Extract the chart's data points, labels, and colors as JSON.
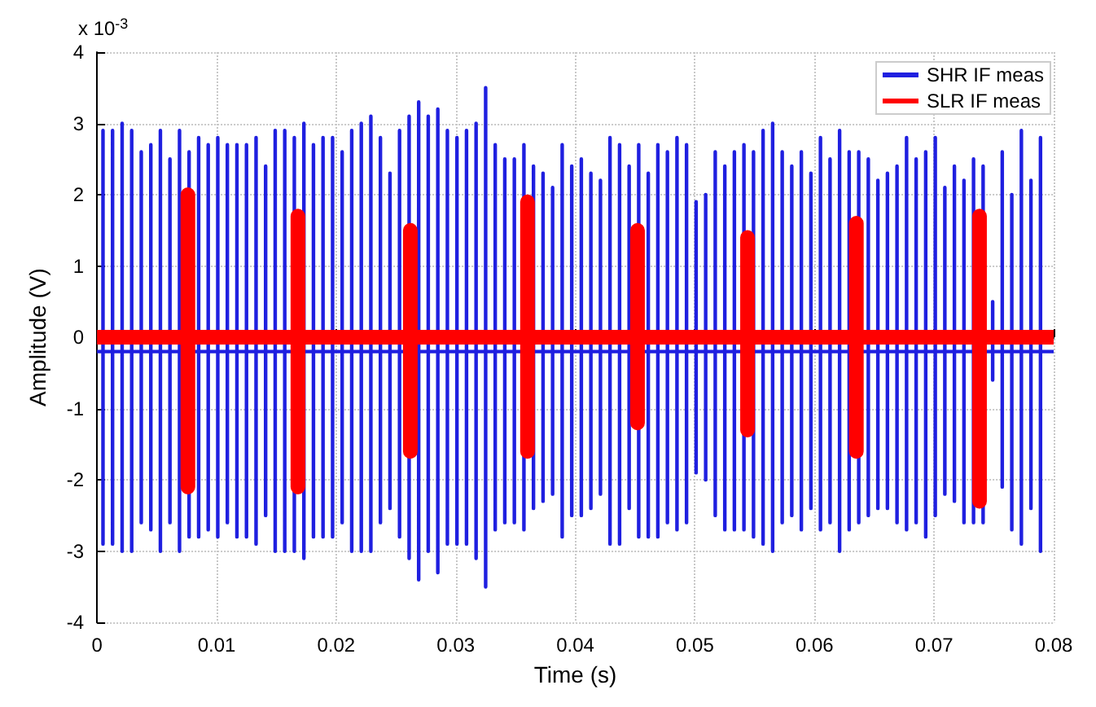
{
  "chart_data": {
    "type": "step",
    "xlabel": "Time (s)",
    "ylabel": "Amplitude (V)",
    "annotations": [
      "x 10$^{-3}$"
    ],
    "xlim": [
      0,
      0.08
    ],
    "xticks": [
      0,
      0.01,
      0.02,
      0.03,
      0.04,
      0.05,
      0.06,
      0.07,
      0.08
    ],
    "ylim": [
      -4,
      4
    ],
    "yticks": [
      -4,
      -3,
      -2,
      -1,
      0,
      1,
      2,
      3,
      4
    ],
    "grid": true,
    "legend": "top right",
    "line_style": "solid",
    "marker": "none",
    "series": [
      {
        "name": "SHR IF meas",
        "color": "#1f1fe0",
        "x": [
          0,
          0.0005,
          0.0005,
          0.0005,
          0.0013,
          0.0013,
          0.0013,
          0.0021,
          0.0021,
          0.0021,
          0.0029,
          0.0029,
          0.0029,
          0.0037,
          0.0037,
          0.0037,
          0.0045,
          0.0045,
          0.0045,
          0.0053,
          0.0053,
          0.0053,
          0.0061,
          0.0061,
          0.0061,
          0.0069,
          0.0069,
          0.0069,
          0.0077,
          0.0077,
          0.0077,
          0.0085,
          0.0085,
          0.0085,
          0.0093,
          0.0093,
          0.0093,
          0.0101,
          0.0101,
          0.0101,
          0.0109,
          0.0109,
          0.0109,
          0.0117,
          0.0117,
          0.0117,
          0.0125,
          0.0125,
          0.0125,
          0.0133,
          0.0133,
          0.0133,
          0.0141,
          0.0141,
          0.0141,
          0.0149,
          0.0149,
          0.0149,
          0.0157,
          0.0157,
          0.0157,
          0.0165,
          0.0165,
          0.0165,
          0.0173,
          0.0173,
          0.0173,
          0.0181,
          0.0181,
          0.0181,
          0.0189,
          0.0189,
          0.0189,
          0.0197,
          0.0197,
          0.0197,
          0.0205,
          0.0205,
          0.0205,
          0.0213,
          0.0213,
          0.0213,
          0.0221,
          0.0221,
          0.0221,
          0.0229,
          0.0229,
          0.0229,
          0.0237,
          0.0237,
          0.0237,
          0.0245,
          0.0245,
          0.0245,
          0.0253,
          0.0253,
          0.0253,
          0.0261,
          0.0261,
          0.0261,
          0.0269,
          0.0269,
          0.0269,
          0.0277,
          0.0277,
          0.0277,
          0.0285,
          0.0285,
          0.0285,
          0.0293,
          0.0293,
          0.0293,
          0.0301,
          0.0301,
          0.0301,
          0.0309,
          0.0309,
          0.0309,
          0.0317,
          0.0317,
          0.0317,
          0.0325,
          0.0325,
          0.0325,
          0.0333,
          0.0333,
          0.0333,
          0.0341,
          0.0341,
          0.0341,
          0.0349,
          0.0349,
          0.0349,
          0.0357,
          0.0357,
          0.0357,
          0.0365,
          0.0365,
          0.0365,
          0.0373,
          0.0373,
          0.0373,
          0.0381,
          0.0381,
          0.0381,
          0.0389,
          0.0389,
          0.0389,
          0.0397,
          0.0397,
          0.0397,
          0.0405,
          0.0405,
          0.0405,
          0.0413,
          0.0413,
          0.0413,
          0.0421,
          0.0421,
          0.0421,
          0.0429,
          0.0429,
          0.0429,
          0.0437,
          0.0437,
          0.0437,
          0.0445,
          0.0445,
          0.0445,
          0.0453,
          0.0453,
          0.0453,
          0.0461,
          0.0461,
          0.0461,
          0.0469,
          0.0469,
          0.0469,
          0.0477,
          0.0477,
          0.0477,
          0.0485,
          0.0485,
          0.0485,
          0.0493,
          0.0493,
          0.0493,
          0.0501,
          0.0501,
          0.0501,
          0.0509,
          0.0509,
          0.0509,
          0.0517,
          0.0517,
          0.0517,
          0.0525,
          0.0525,
          0.0525,
          0.0533,
          0.0533,
          0.0533,
          0.0541,
          0.0541,
          0.0541,
          0.0549,
          0.0549,
          0.0549,
          0.0557,
          0.0557,
          0.0557,
          0.0565,
          0.0565,
          0.0565,
          0.0573,
          0.0573,
          0.0573,
          0.0581,
          0.0581,
          0.0581,
          0.0589,
          0.0589,
          0.0589,
          0.0597,
          0.0597,
          0.0597,
          0.0605,
          0.0605,
          0.0605,
          0.0613,
          0.0613,
          0.0613,
          0.0621,
          0.0621,
          0.0621,
          0.0629,
          0.0629,
          0.0629,
          0.0637,
          0.0637,
          0.0637,
          0.0645,
          0.0645,
          0.0645,
          0.0653,
          0.0653,
          0.0653,
          0.0661,
          0.0661,
          0.0661,
          0.0669,
          0.0669,
          0.0669,
          0.0677,
          0.0677,
          0.0677,
          0.0685,
          0.0685,
          0.0685,
          0.0693,
          0.0693,
          0.0693,
          0.0701,
          0.0701,
          0.0701,
          0.0709,
          0.0709,
          0.0709,
          0.0717,
          0.0717,
          0.0717,
          0.0725,
          0.0725,
          0.0725,
          0.0733,
          0.0733,
          0.0733,
          0.0741,
          0.0741,
          0.0741,
          0.0749,
          0.0749,
          0.0749,
          0.0757,
          0.0757,
          0.0757,
          0.0765,
          0.0765,
          0.0765,
          0.0773,
          0.0773,
          0.0773,
          0.0781,
          0.0781,
          0.0781,
          0.0789,
          0.0789,
          0.0789,
          0.08
        ],
        "values": [
          -0.2,
          2.9,
          -2.9,
          -0.2,
          2.9,
          -2.9,
          -0.2,
          3.0,
          -3.0,
          -0.2,
          2.9,
          -3.0,
          -0.2,
          2.6,
          -2.6,
          -0.2,
          2.7,
          -2.7,
          -0.2,
          2.9,
          -3.0,
          -0.2,
          2.5,
          -2.6,
          -0.2,
          2.9,
          -3.0,
          -0.2,
          2.6,
          -2.8,
          -0.2,
          2.8,
          -2.8,
          -0.2,
          2.7,
          -2.7,
          -0.2,
          2.8,
          -2.8,
          -0.2,
          2.7,
          -2.6,
          -0.2,
          2.7,
          -2.8,
          -0.2,
          2.7,
          -2.8,
          -0.2,
          2.8,
          -2.9,
          -0.2,
          2.4,
          -2.5,
          -0.2,
          2.9,
          -3.0,
          -0.2,
          2.9,
          -3.0,
          -0.2,
          2.8,
          -3.0,
          -0.2,
          3.0,
          -3.1,
          -0.2,
          2.7,
          -2.8,
          -0.2,
          2.8,
          -2.8,
          -0.2,
          2.8,
          -2.8,
          -0.2,
          2.6,
          -2.6,
          -0.2,
          2.9,
          -3.0,
          -0.2,
          3.0,
          -3.0,
          -0.2,
          3.1,
          -3.0,
          -0.2,
          2.8,
          -2.6,
          -0.2,
          2.3,
          -2.4,
          -0.2,
          2.9,
          -2.8,
          -0.2,
          3.1,
          -3.1,
          -0.2,
          3.3,
          -3.4,
          -0.2,
          3.1,
          -3.0,
          -0.2,
          3.2,
          -3.3,
          -0.2,
          2.9,
          -2.9,
          -0.2,
          2.8,
          -2.9,
          -0.2,
          2.9,
          -2.9,
          -0.2,
          3.0,
          -3.1,
          -0.2,
          3.5,
          -3.5,
          -0.2,
          2.7,
          -2.7,
          -0.2,
          2.5,
          -2.6,
          -0.2,
          2.5,
          -2.6,
          -0.2,
          2.7,
          -2.7,
          -0.2,
          2.4,
          -2.4,
          -0.2,
          2.3,
          -2.3,
          -0.2,
          2.1,
          -2.2,
          -0.2,
          2.7,
          -2.8,
          -0.2,
          2.4,
          -2.5,
          -0.2,
          2.5,
          -2.5,
          -0.2,
          2.3,
          -2.4,
          -0.2,
          2.2,
          -2.2,
          -0.2,
          2.8,
          -2.9,
          -0.2,
          2.7,
          -2.9,
          -0.2,
          2.4,
          -2.4,
          -0.2,
          2.7,
          -2.8,
          -0.2,
          2.3,
          -2.8,
          -0.2,
          2.7,
          -2.8,
          -0.2,
          2.6,
          -2.6,
          -0.2,
          2.8,
          -2.7,
          -0.2,
          2.7,
          -2.6,
          -0.2,
          1.9,
          -1.9,
          -0.2,
          2.0,
          -2.0,
          -0.2,
          2.6,
          -2.5,
          -0.2,
          2.4,
          -2.7,
          -0.2,
          2.6,
          -2.7,
          -0.2,
          2.7,
          -2.7,
          -0.2,
          2.6,
          -2.8,
          -0.2,
          2.9,
          -2.9,
          -0.2,
          3.0,
          -3.0,
          -0.2,
          2.6,
          -2.6,
          -0.2,
          2.4,
          -2.5,
          -0.2,
          2.6,
          -2.7,
          -0.2,
          2.3,
          -2.4,
          -0.2,
          2.8,
          -2.7,
          -0.2,
          2.5,
          -2.6,
          -0.2,
          2.9,
          -3.0,
          -0.2,
          2.6,
          -2.7,
          -0.2,
          2.6,
          -2.6,
          -0.2,
          2.5,
          -2.5,
          -0.2,
          2.2,
          -2.4,
          -0.2,
          2.3,
          -2.4,
          -0.2,
          2.4,
          -2.6,
          -0.2,
          2.8,
          -2.7,
          -0.2,
          2.5,
          -2.6,
          -0.2,
          2.6,
          -2.8,
          -0.2,
          2.8,
          -2.5,
          -0.2,
          2.1,
          -2.2,
          -0.2,
          2.4,
          -2.3,
          -0.2,
          2.2,
          -2.6,
          -0.2,
          2.5,
          -2.6,
          -0.2,
          2.4,
          -2.6,
          -0.2,
          0.5,
          -0.6,
          -0.2,
          2.6,
          -2.1,
          -0.2,
          2.0,
          -2.7,
          -0.2,
          2.9,
          -2.9,
          -0.2,
          2.2,
          -2.4,
          -0.2,
          2.8,
          -3.0,
          -0.2,
          -0.2
        ]
      },
      {
        "name": "SLR IF meas",
        "color": "#ff0000",
        "x": [
          0,
          0.0076,
          0.0076,
          0.0076,
          0.0168,
          0.0168,
          0.0168,
          0.0262,
          0.0262,
          0.0262,
          0.036,
          0.036,
          0.036,
          0.0452,
          0.0452,
          0.0452,
          0.0544,
          0.0544,
          0.0544,
          0.0635,
          0.0635,
          0.0635,
          0.0738,
          0.0738,
          0.0738,
          0.08
        ],
        "values": [
          0,
          2.0,
          -2.1,
          0,
          1.7,
          -2.1,
          0,
          1.5,
          -1.6,
          0,
          1.9,
          -1.6,
          0,
          1.5,
          -1.2,
          0,
          1.4,
          -1.3,
          0,
          1.6,
          -1.6,
          0,
          1.7,
          -2.3,
          0,
          0
        ]
      }
    ]
  }
}
